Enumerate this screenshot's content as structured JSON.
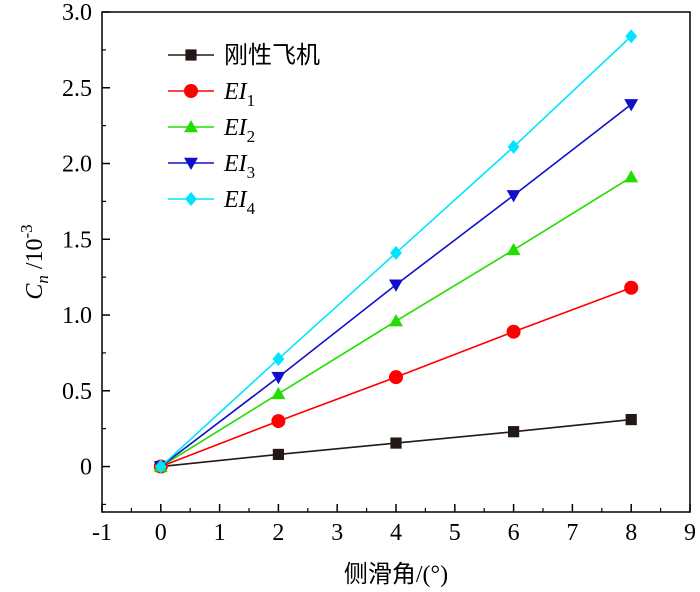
{
  "chart_data": {
    "type": "line",
    "xlabel": "侧滑角/(°)",
    "ylabel": {
      "base": "C",
      "sub": "n",
      "unit": " /10",
      "exp": "-3"
    },
    "xlim": [
      -1,
      9
    ],
    "ylim": [
      -0.3,
      3.0
    ],
    "xticks": [
      -1,
      0,
      1,
      2,
      3,
      4,
      5,
      6,
      7,
      8,
      9
    ],
    "xtick_labels": [
      "-1",
      "0",
      "1",
      "2",
      "3",
      "4",
      "5",
      "6",
      "7",
      "8",
      "9"
    ],
    "yticks": [
      0,
      0.5,
      1.0,
      1.5,
      2.0,
      2.5,
      3.0
    ],
    "ytick_labels": [
      "0",
      "0.5",
      "1.0",
      "1.5",
      "2.0",
      "2.5",
      "3.0"
    ],
    "x": [
      0,
      2,
      4,
      6,
      8
    ],
    "legend_position": "top-left",
    "series": [
      {
        "name": "刚性飞机",
        "label": "刚性飞机",
        "sub": "",
        "italic": false,
        "color": "#231815",
        "marker": "square",
        "values": [
          0,
          0.08,
          0.155,
          0.23,
          0.31
        ]
      },
      {
        "name": "EI1",
        "label": "EI",
        "sub": "1",
        "italic": true,
        "color": "#ff0000",
        "marker": "circle",
        "values": [
          0,
          0.3,
          0.59,
          0.89,
          1.18
        ]
      },
      {
        "name": "EI2",
        "label": "EI",
        "sub": "2",
        "italic": true,
        "color": "#22dd00",
        "marker": "triangle-up",
        "values": [
          0,
          0.48,
          0.96,
          1.43,
          1.91
        ]
      },
      {
        "name": "EI3",
        "label": "EI",
        "sub": "3",
        "italic": true,
        "color": "#1010cc",
        "marker": "triangle-down",
        "values": [
          0,
          0.59,
          1.2,
          1.79,
          2.39
        ]
      },
      {
        "name": "EI4",
        "label": "EI",
        "sub": "4",
        "italic": true,
        "color": "#00e5ff",
        "marker": "diamond",
        "values": [
          0,
          0.71,
          1.41,
          2.11,
          2.84
        ]
      }
    ]
  }
}
